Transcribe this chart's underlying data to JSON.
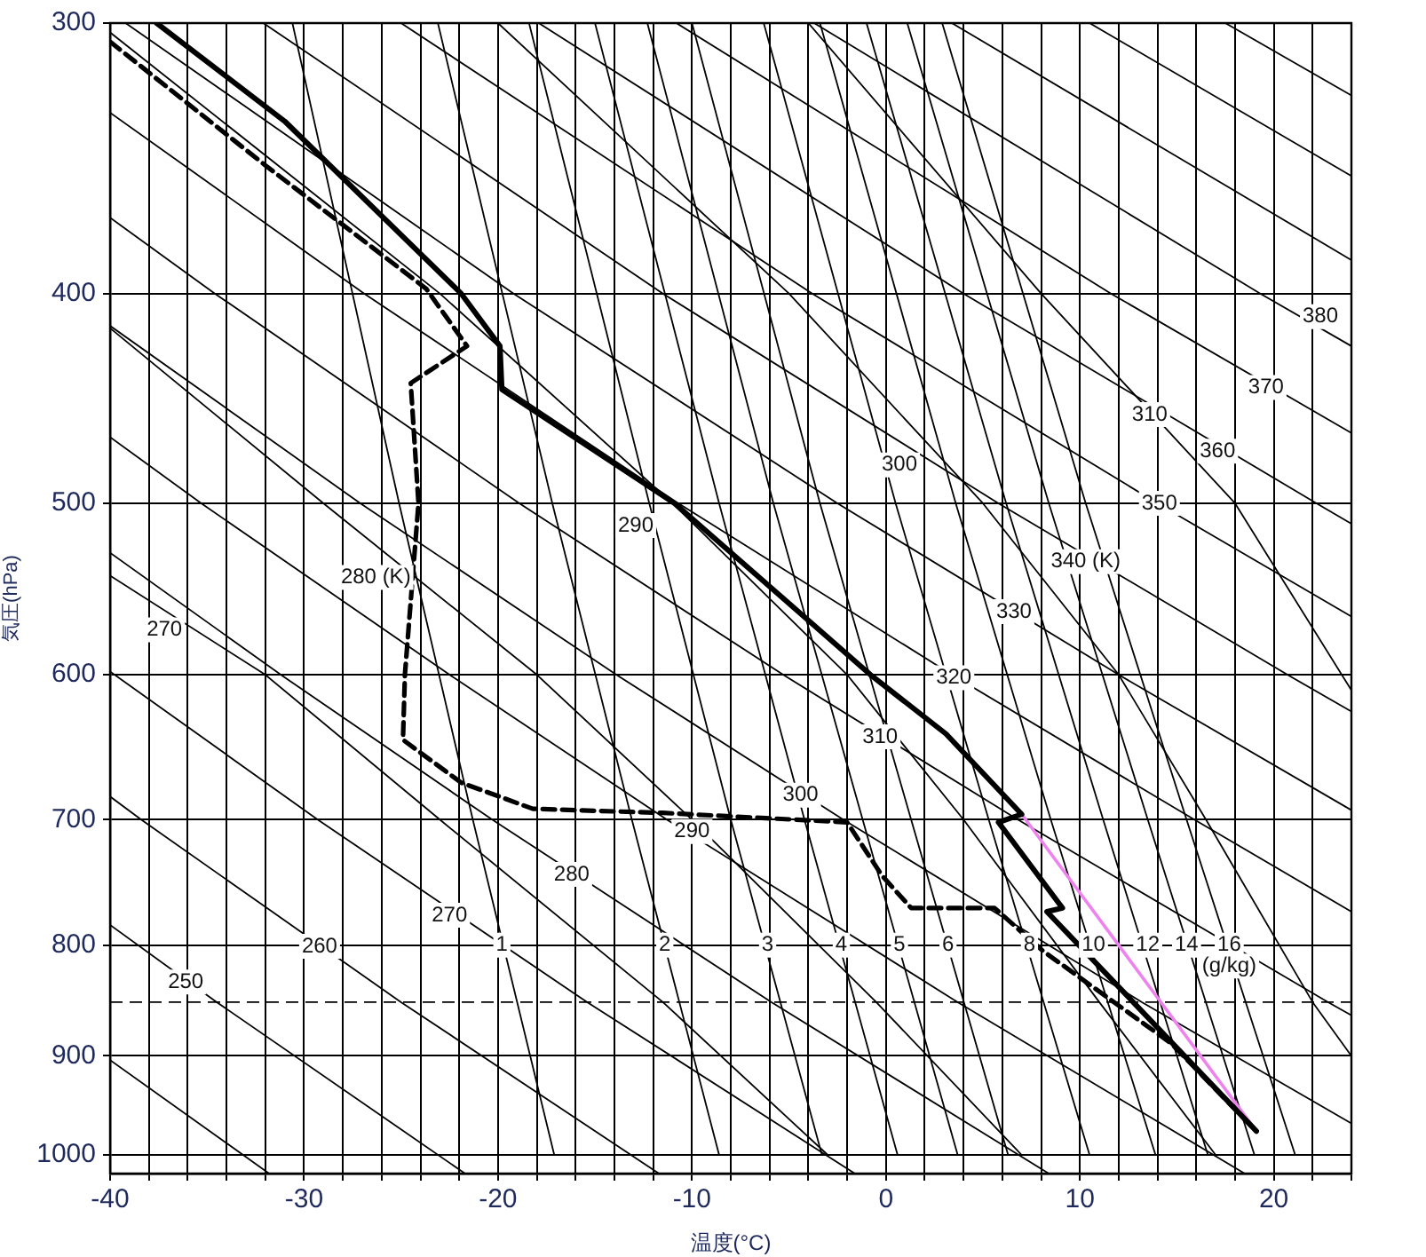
{
  "chart_data": {
    "type": "line",
    "xlabel": "温度(°C)",
    "ylabel": "気圧(hPa)",
    "xlim": [
      -40,
      24
    ],
    "ylim": [
      1020,
      300
    ],
    "log": "y",
    "grid": true,
    "legend": false,
    "marker": "none",
    "xticks": [
      -40,
      {
        "value": -38,
        "label": null
      },
      {
        "value": -36,
        "label": null
      },
      {
        "value": -34,
        "label": null
      },
      {
        "value": -32,
        "label": null
      },
      -30,
      {
        "value": -28,
        "label": null
      },
      {
        "value": -26,
        "label": null
      },
      {
        "value": -24,
        "label": null
      },
      {
        "value": -22,
        "label": null
      },
      -20,
      {
        "value": -18,
        "label": null
      },
      {
        "value": -16,
        "label": null
      },
      {
        "value": -14,
        "label": null
      },
      {
        "value": -12,
        "label": null
      },
      -10,
      {
        "value": -8,
        "label": null
      },
      {
        "value": -6,
        "label": null
      },
      {
        "value": -4,
        "label": null
      },
      {
        "value": -2,
        "label": null
      },
      0,
      {
        "value": 2,
        "label": null
      },
      {
        "value": 4,
        "label": null
      },
      {
        "value": 6,
        "label": null
      },
      {
        "value": 8,
        "label": null
      },
      10,
      {
        "value": 12,
        "label": null
      },
      {
        "value": 14,
        "label": null
      },
      {
        "value": 16,
        "label": null
      },
      {
        "value": 18,
        "label": null
      },
      20,
      {
        "value": 22,
        "label": null
      },
      {
        "value": 24,
        "label": null
      }
    ],
    "yticks": [
      300,
      400,
      500,
      600,
      700,
      800,
      900,
      1000
    ],
    "ref_lines": [
      {
        "axis": "y",
        "value": 850,
        "line_style": "dashed",
        "color": "#000000"
      }
    ],
    "series": [
      {
        "color": "#000000",
        "x": [
          -37.6,
          -31.0,
          -21.9,
          -19.9,
          -19.8,
          -10.9,
          -0.8,
          3.1,
          7.0,
          5.8,
          9.1,
          8.3,
          19.1
        ],
        "values": [
          300,
          333,
          400,
          423,
          443,
          500,
          600,
          639,
          696,
          702,
          769,
          772,
          975
        ]
      },
      {
        "color": "#000000",
        "line_style": "dashed",
        "x": [
          -40,
          -32,
          -23.7,
          -21.6,
          -24.5,
          -24.1,
          -24.8,
          -24.9,
          -21.9,
          -18.2,
          -11.5,
          -2.0,
          -0.2,
          1.3,
          5.6,
          8.1,
          14.7,
          19.1
        ],
        "values": [
          306,
          349,
          398,
          423,
          440,
          500,
          600,
          643,
          673,
          692,
          695,
          702,
          743,
          769,
          769,
          805,
          888,
          975
        ]
      },
      {
        "color": "#ee82ee",
        "x": [
          7.0,
          19.1
        ],
        "values": [
          696,
          975
        ]
      },
      {
        "color": "#000000",
        "x": [
          -31.8,
          -40
        ],
        "values": [
          1020,
          904
        ]
      },
      {
        "color": "#000000",
        "x": [
          -21.7,
          -34.5,
          -40
        ],
        "values": [
          1020,
          850,
          783
        ]
      },
      {
        "color": "#000000",
        "x": [
          -11.7,
          -25,
          -38.4,
          -40
        ],
        "values": [
          1020,
          850,
          700,
          683
        ]
      },
      {
        "color": "#000000",
        "x": [
          -1.6,
          -15.4,
          -29.3,
          -40
        ],
        "values": [
          1020,
          850,
          700,
          598
        ]
      },
      {
        "color": "#000000",
        "x": [
          8.4,
          -5.9,
          -20.3,
          -31.2,
          -40
        ],
        "values": [
          1020,
          850,
          700,
          600,
          527
        ]
      },
      {
        "color": "#000000",
        "x": [
          18.5,
          3.7,
          -11.3,
          -22.5,
          -35.3,
          -40
        ],
        "values": [
          1020,
          850,
          700,
          600,
          500,
          466
        ]
      },
      {
        "color": "#000000",
        "x": [
          24,
          13.2,
          -2.2,
          -13.9,
          -27.1,
          -40
        ],
        "values": [
          967,
          850,
          700,
          600,
          500,
          414
        ]
      },
      {
        "color": "#000000",
        "x": [
          24,
          22.8,
          6.8,
          -5.3,
          -18.9,
          -34.6,
          -40
        ],
        "values": [
          862,
          850,
          700,
          600,
          500,
          400,
          369
        ]
      },
      {
        "color": "#000000",
        "x": [
          24,
          15.9,
          3.4,
          -10.7,
          -26.9,
          -40
        ],
        "values": [
          772,
          700,
          600,
          500,
          400,
          330
        ]
      },
      {
        "color": "#000000",
        "x": [
          24,
          12,
          -2.5,
          -19.2,
          -39.2
        ],
        "values": [
          693,
          600,
          500,
          400,
          300
        ]
      },
      {
        "color": "#000000",
        "x": [
          24,
          20.7,
          5.8,
          -11.5,
          -32.1
        ],
        "values": [
          624,
          600,
          500,
          400,
          300
        ]
      },
      {
        "color": "#000000",
        "x": [
          24,
          14,
          -3.8,
          -25
        ],
        "values": [
          564,
          500,
          400,
          300
        ]
      },
      {
        "color": "#000000",
        "x": [
          24,
          22.2,
          4,
          -17.9
        ],
        "values": [
          511,
          500,
          400,
          300
        ]
      },
      {
        "color": "#000000",
        "x": [
          24,
          11.6,
          -10.8
        ],
        "values": [
          464,
          400,
          300
        ]
      },
      {
        "color": "#000000",
        "x": [
          24,
          19.3,
          -3.7
        ],
        "values": [
          423,
          400,
          300
        ]
      },
      {
        "color": "#000000",
        "x": [
          24,
          3.4
        ],
        "values": [
          386,
          300
        ]
      },
      {
        "color": "#000000",
        "x": [
          24,
          10.5
        ],
        "values": [
          353,
          300
        ]
      },
      {
        "color": "#000000",
        "x": [
          24,
          17.5
        ],
        "values": [
          324,
          300
        ]
      },
      {
        "color": "#000000",
        "x": [
          -3,
          -11.5,
          -23,
          -32,
          -40
        ],
        "values": [
          1000,
          850,
          700,
          600,
          540
        ]
      },
      {
        "color": "#000000",
        "x": [
          7,
          -0.5,
          -10,
          -18,
          -29,
          -40
        ],
        "values": [
          1000,
          850,
          700,
          600,
          500,
          415
        ]
      },
      {
        "color": "#000000",
        "x": [
          17,
          11,
          4,
          -2,
          -11,
          -23,
          -40
        ],
        "values": [
          1000,
          850,
          700,
          600,
          500,
          400,
          303
        ]
      },
      {
        "color": "#000000",
        "x": [
          24,
          22,
          16.5,
          12,
          5,
          -5,
          -20
        ],
        "values": [
          900,
          850,
          700,
          600,
          500,
          400,
          300
        ]
      },
      {
        "color": "#000000",
        "x": [
          24,
          18,
          8,
          -4
        ],
        "values": [
          610,
          500,
          400,
          300
        ]
      },
      {
        "color": "#000000",
        "x": [
          -17.1,
          -21.3,
          -25.1,
          -30.6
        ],
        "values": [
          1000,
          700,
          500,
          300
        ]
      },
      {
        "color": "#000000",
        "x": [
          -8.6,
          -13.1,
          -17.2,
          -23.1
        ],
        "values": [
          1000,
          700,
          500,
          300
        ]
      },
      {
        "color": "#000000",
        "x": [
          -3.3,
          -8.0,
          -12.2,
          -18.4
        ],
        "values": [
          1000,
          700,
          500,
          300
        ]
      },
      {
        "color": "#000000",
        "x": [
          0.6,
          -4.2,
          -8.6,
          -15.0
        ],
        "values": [
          1000,
          700,
          500,
          300
        ]
      },
      {
        "color": "#000000",
        "x": [
          3.7,
          -1.2,
          -5.8,
          -12.3
        ],
        "values": [
          1000,
          700,
          500,
          300
        ]
      },
      {
        "color": "#000000",
        "x": [
          6.3,
          1.3,
          -3.4,
          -10.0
        ],
        "values": [
          1000,
          700,
          500,
          300
        ]
      },
      {
        "color": "#000000",
        "x": [
          10.5,
          5.3,
          0.5,
          -6.3
        ],
        "values": [
          1000,
          700,
          500,
          300
        ]
      },
      {
        "color": "#000000",
        "x": [
          13.9,
          8.5,
          3.6,
          -3.4
        ],
        "values": [
          1000,
          700,
          500,
          300
        ]
      },
      {
        "color": "#000000",
        "x": [
          16.6,
          11.2,
          6.2,
          -1.0
        ],
        "values": [
          1000,
          700,
          500,
          300
        ]
      },
      {
        "color": "#000000",
        "x": [
          19.0,
          13.5,
          8.4,
          1.1
        ],
        "values": [
          1000,
          700,
          500,
          300
        ]
      },
      {
        "color": "#000000",
        "x": [
          21.1,
          15.5,
          10.3,
          2.9
        ],
        "values": [
          1000,
          700,
          500,
          300
        ]
      }
    ],
    "annotations": [
      {
        "text": "250",
        "x": -36.1,
        "y": 832
      },
      {
        "text": "260",
        "x": -29.2,
        "y": 801
      },
      {
        "text": "270",
        "x": -22.5,
        "y": 775
      },
      {
        "text": "280",
        "x": -16.2,
        "y": 742
      },
      {
        "text": "290",
        "x": -10.0,
        "y": 709
      },
      {
        "text": "300",
        "x": -4.4,
        "y": 682
      },
      {
        "text": "310",
        "x": -0.3,
        "y": 641
      },
      {
        "text": "320",
        "x": 3.5,
        "y": 602
      },
      {
        "text": "330",
        "x": 6.6,
        "y": 561
      },
      {
        "text": "340 (K)",
        "x": 10.3,
        "y": 532
      },
      {
        "text": "350",
        "x": 14.1,
        "y": 500
      },
      {
        "text": "360",
        "x": 17.1,
        "y": 473
      },
      {
        "text": "370",
        "x": 19.6,
        "y": 442
      },
      {
        "text": "380",
        "x": 22.4,
        "y": 410
      },
      {
        "text": "270",
        "x": -37.2,
        "y": 572
      },
      {
        "text": "280 (K)",
        "x": -26.3,
        "y": 541
      },
      {
        "text": "290",
        "x": -12.9,
        "y": 512
      },
      {
        "text": "300",
        "x": 0.7,
        "y": 480
      },
      {
        "text": "310",
        "x": 13.6,
        "y": 455
      },
      {
        "text": "1",
        "x": -19.8,
        "y": 800
      },
      {
        "text": "2",
        "x": -11.4,
        "y": 800
      },
      {
        "text": "3",
        "x": -6.1,
        "y": 800
      },
      {
        "text": "4",
        "x": -2.3,
        "y": 800
      },
      {
        "text": "5",
        "x": 0.7,
        "y": 800
      },
      {
        "text": "6",
        "x": 3.2,
        "y": 800
      },
      {
        "text": "8",
        "x": 7.4,
        "y": 800
      },
      {
        "text": "10",
        "x": 10.7,
        "y": 800
      },
      {
        "text": "12",
        "x": 13.5,
        "y": 800
      },
      {
        "text": "14",
        "x": 15.5,
        "y": 800
      },
      {
        "text": "16",
        "x": 17.7,
        "y": 800
      },
      {
        "text": "(g/kg)",
        "x": 17.7,
        "y": 818
      }
    ]
  }
}
